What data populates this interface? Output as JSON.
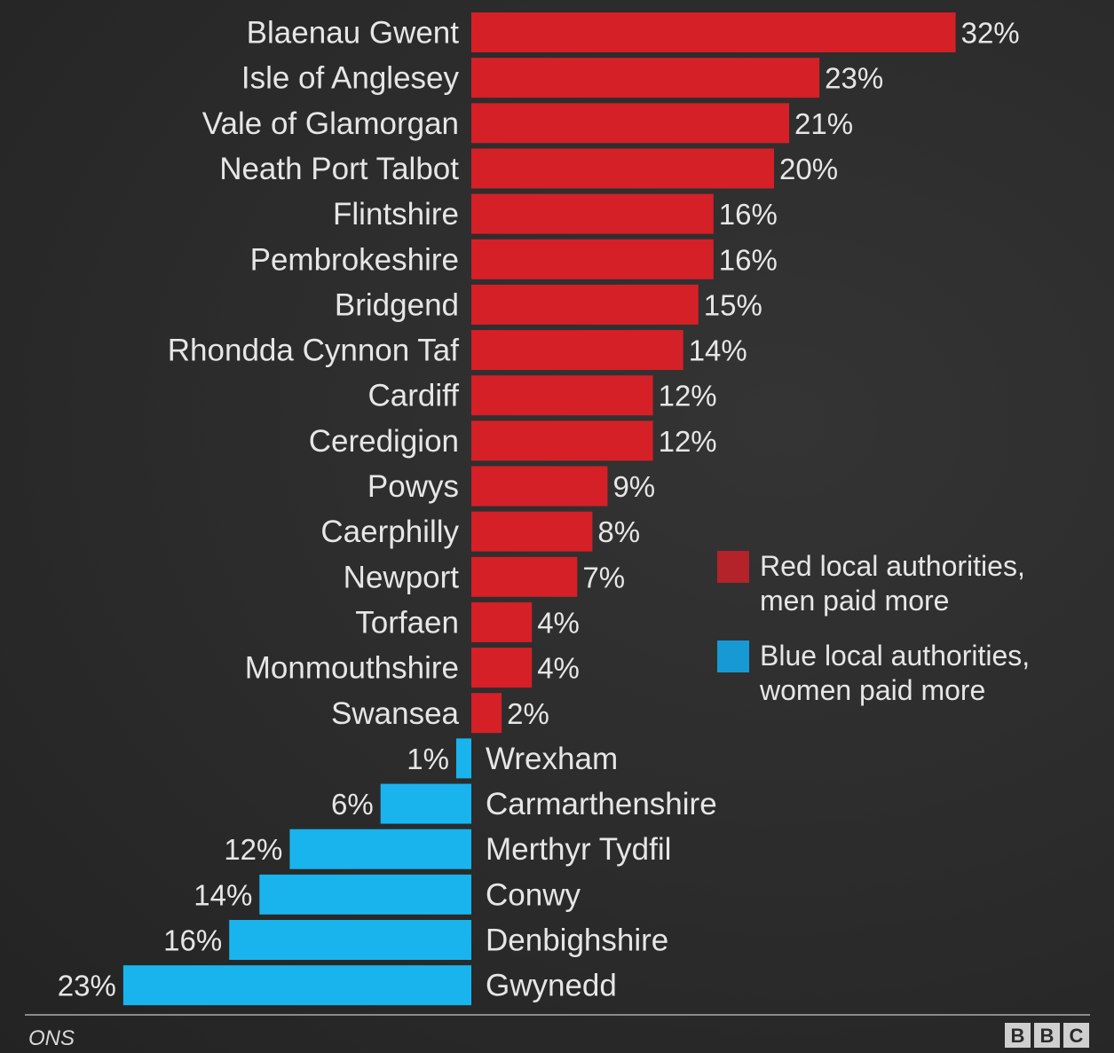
{
  "chart_data": {
    "type": "bar",
    "orientation": "horizontal",
    "categories": [
      "Blaenau Gwent",
      "Isle of Anglesey",
      "Vale of Glamorgan",
      "Neath Port Talbot",
      "Flintshire",
      "Pembrokeshire",
      "Bridgend",
      "Rhondda Cynnon Taf",
      "Cardiff",
      "Ceredigion",
      "Powys",
      "Caerphilly",
      "Newport",
      "Torfaen",
      "Monmouthshire",
      "Swansea",
      "Wrexham",
      "Carmarthenshire",
      "Merthyr Tydfil",
      "Conwy",
      "Denbighshire",
      "Gwynedd"
    ],
    "values": [
      32,
      23,
      21,
      20,
      16,
      16,
      15,
      14,
      12,
      12,
      9,
      8,
      7,
      4,
      4,
      2,
      -1,
      -6,
      -12,
      -14,
      -16,
      -23
    ],
    "value_labels": [
      "32%",
      "23%",
      "21%",
      "20%",
      "16%",
      "16%",
      "15%",
      "14%",
      "12%",
      "12%",
      "9%",
      "8%",
      "7%",
      "4%",
      "4%",
      "2%",
      "1%",
      "6%",
      "12%",
      "14%",
      "16%",
      "23%"
    ],
    "positive_color": "#d52027",
    "negative_color": "#19b4ee",
    "legend": {
      "placement": "right",
      "items": [
        {
          "color": "#b4222a",
          "lines": [
            "Red local authorities,",
            "men paid more"
          ]
        },
        {
          "color": "#1799d3",
          "lines": [
            "Blue local authorities,",
            "women paid more"
          ]
        }
      ]
    }
  },
  "footer": {
    "source": "ONS",
    "logo_letters": [
      "B",
      "B",
      "C"
    ]
  }
}
